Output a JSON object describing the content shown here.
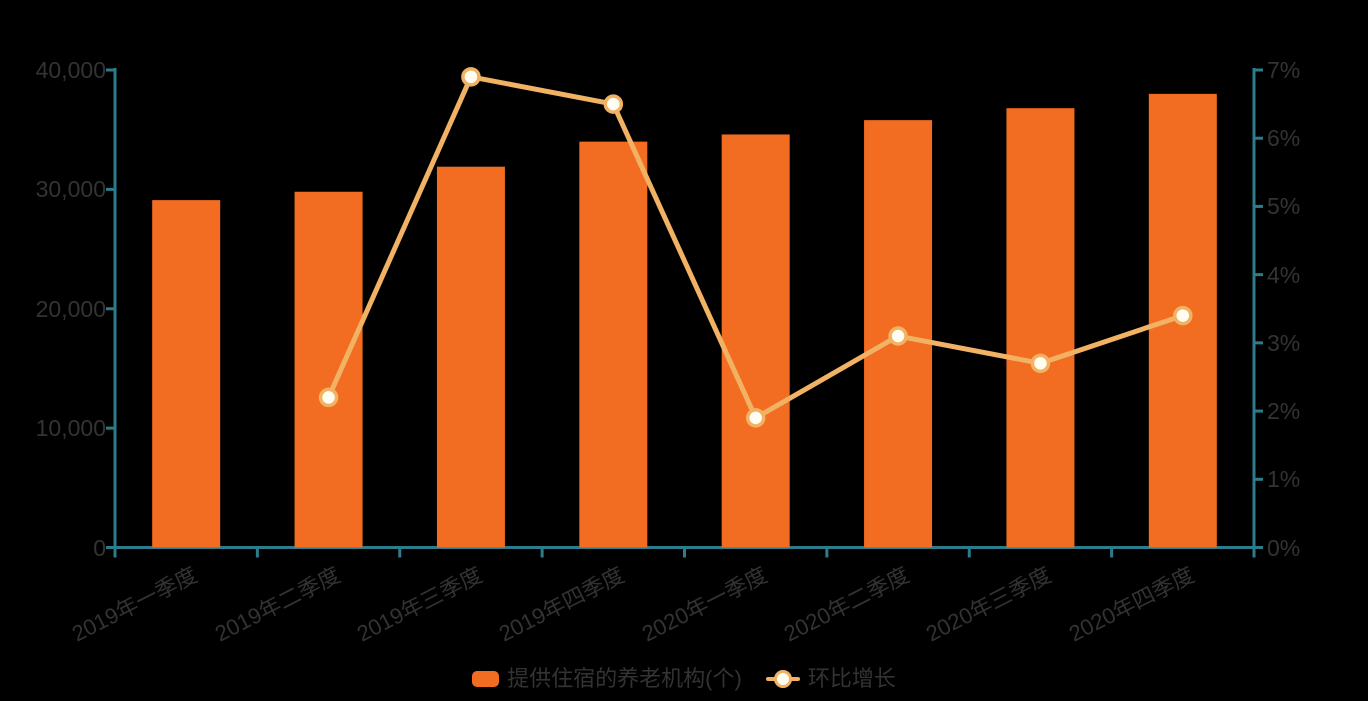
{
  "colors": {
    "bar": "#f26c21",
    "line": "#f1b264",
    "marker_fill": "#fffdf2",
    "axis": "#2c7c8b",
    "text": "#333333",
    "background": "#000000"
  },
  "chart_data": {
    "type": "bar",
    "title": "",
    "categories": [
      "2019年一季度",
      "2019年二季度",
      "2019年三季度",
      "2019年四季度",
      "2020年一季度",
      "2020年二季度",
      "2020年三季度",
      "2020年四季度"
    ],
    "series": [
      {
        "name": "提供住宿的养老机构(个)",
        "type": "bar",
        "yaxis": "left",
        "values": [
          29100,
          29800,
          31900,
          34000,
          34600,
          35800,
          36800,
          38000
        ]
      },
      {
        "name": "环比增长",
        "type": "line",
        "yaxis": "right",
        "unit": "%",
        "values": [
          null,
          2.2,
          6.9,
          6.5,
          1.9,
          3.1,
          2.7,
          3.4
        ]
      }
    ],
    "left_axis": {
      "min": 0,
      "max": 40000,
      "tick_labels": [
        "0",
        "10,000",
        "20,000",
        "30,000",
        "40,000"
      ]
    },
    "right_axis": {
      "min": 0,
      "max": 7,
      "tick_labels": [
        "0%",
        "1%",
        "2%",
        "3%",
        "4%",
        "5%",
        "6%",
        "7%"
      ]
    },
    "grid": false,
    "legend_position": "bottom"
  }
}
